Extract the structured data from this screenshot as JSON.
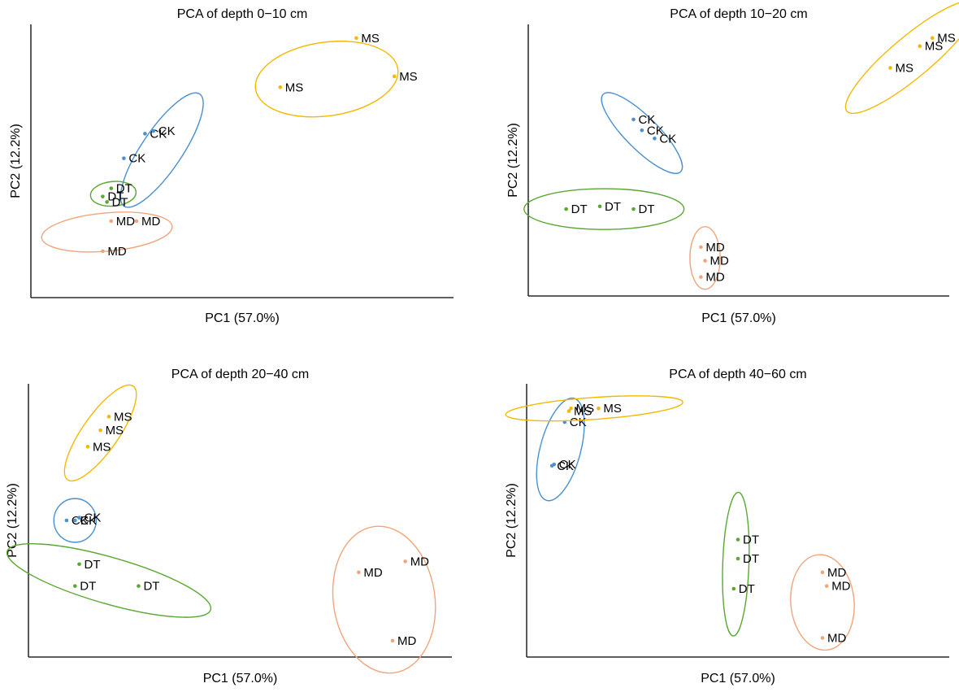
{
  "colors": {
    "CK": "#4a90d0",
    "DT": "#5aa832",
    "MD": "#f2a57a",
    "MS": "#f5b800",
    "axis": "#000000"
  },
  "chart_data": [
    {
      "type": "scatter",
      "title": "PCA of depth 0−10 cm",
      "xlabel": "PC1 (57.0%)",
      "ylabel": "PC2 (12.2%)",
      "xlim": [
        0,
        100
      ],
      "ylim": [
        0,
        100
      ],
      "series": [
        {
          "group": "CK",
          "points": [
            {
              "x": 27,
              "y": 60,
              "label": "CK"
            },
            {
              "x": 29,
              "y": 61,
              "label": "CK"
            },
            {
              "x": 22,
              "y": 51,
              "label": "CK"
            }
          ],
          "ellipse": {
            "cx": 31,
            "cy": 54,
            "rx": 16,
            "ry": 7.4,
            "angle": -56
          }
        },
        {
          "group": "DT",
          "points": [
            {
              "x": 19,
              "y": 40,
              "label": "DT"
            },
            {
              "x": 17,
              "y": 37,
              "label": "DT"
            },
            {
              "x": 18,
              "y": 35,
              "label": "DT"
            }
          ],
          "ellipse": {
            "cx": 19.5,
            "cy": 38,
            "rx": 5.4,
            "ry": 4.5,
            "angle": -5
          }
        },
        {
          "group": "MD",
          "points": [
            {
              "x": 19,
              "y": 28,
              "label": "MD"
            },
            {
              "x": 25,
              "y": 28,
              "label": "MD"
            },
            {
              "x": 17,
              "y": 17,
              "label": "MD"
            }
          ],
          "ellipse": {
            "cx": 18,
            "cy": 24,
            "rx": 15.5,
            "ry": 7,
            "angle": -5
          }
        },
        {
          "group": "MS",
          "points": [
            {
              "x": 77,
              "y": 95,
              "label": "MS"
            },
            {
              "x": 86,
              "y": 81,
              "label": "MS"
            },
            {
              "x": 59,
              "y": 77,
              "label": "MS"
            }
          ],
          "ellipse": {
            "cx": 70,
            "cy": 80,
            "rx": 17,
            "ry": 13.5,
            "angle": -8
          }
        }
      ]
    },
    {
      "type": "scatter",
      "title": "PCA of depth 10−20 cm",
      "xlabel": "PC1 (57.0%)",
      "ylabel": "PC2 (12.2%)",
      "xlim": [
        0,
        100
      ],
      "ylim": [
        0,
        100
      ],
      "series": [
        {
          "group": "CK",
          "points": [
            {
              "x": 25,
              "y": 65,
              "label": "CK"
            },
            {
              "x": 27,
              "y": 61,
              "label": "CK"
            },
            {
              "x": 30,
              "y": 58,
              "label": "CK"
            }
          ],
          "ellipse": {
            "cx": 27,
            "cy": 60,
            "rx": 13,
            "ry": 6,
            "angle": 45
          }
        },
        {
          "group": "DT",
          "points": [
            {
              "x": 9,
              "y": 32,
              "label": "DT"
            },
            {
              "x": 17,
              "y": 33,
              "label": "DT"
            },
            {
              "x": 25,
              "y": 32,
              "label": "DT"
            }
          ],
          "ellipse": {
            "cx": 18,
            "cy": 32,
            "rx": 19,
            "ry": 7.5,
            "angle": 0
          }
        },
        {
          "group": "MD",
          "points": [
            {
              "x": 41,
              "y": 18,
              "label": "MD"
            },
            {
              "x": 42,
              "y": 13,
              "label": "MD"
            },
            {
              "x": 41,
              "y": 7,
              "label": "MD"
            }
          ],
          "ellipse": {
            "cx": 42,
            "cy": 14,
            "rx": 3.6,
            "ry": 11.5,
            "angle": 0
          }
        },
        {
          "group": "MS",
          "points": [
            {
              "x": 93,
              "y": 92,
              "label": "MS"
            },
            {
              "x": 96,
              "y": 95,
              "label": "MS"
            },
            {
              "x": 86,
              "y": 84,
              "label": "MS"
            }
          ],
          "ellipse": {
            "cx": 91,
            "cy": 88,
            "rx": 20,
            "ry": 7.5,
            "angle": -40
          }
        }
      ]
    },
    {
      "type": "scatter",
      "title": "PCA of depth 20−40 cm",
      "xlabel": "PC1 (57.0%)",
      "ylabel": "PC2 (12.2%)",
      "xlim": [
        0,
        100
      ],
      "ylim": [
        0,
        100
      ],
      "series": [
        {
          "group": "CK",
          "points": [
            {
              "x": 9,
              "y": 50,
              "label": "CK"
            },
            {
              "x": 11,
              "y": 50,
              "label": "CK"
            },
            {
              "x": 12,
              "y": 51,
              "label": "CK"
            }
          ],
          "ellipse": {
            "cx": 11,
            "cy": 50,
            "rx": 5,
            "ry": 8,
            "angle": 0
          }
        },
        {
          "group": "DT",
          "points": [
            {
              "x": 12,
              "y": 34,
              "label": "DT"
            },
            {
              "x": 11,
              "y": 26,
              "label": "DT"
            },
            {
              "x": 26,
              "y": 26,
              "label": "DT"
            }
          ],
          "ellipse": {
            "cx": 19,
            "cy": 28,
            "rx": 25,
            "ry": 8.5,
            "angle": 16
          }
        },
        {
          "group": "MD",
          "points": [
            {
              "x": 89,
              "y": 35,
              "label": "MD"
            },
            {
              "x": 78,
              "y": 31,
              "label": "MD"
            },
            {
              "x": 86,
              "y": 6,
              "label": "MD"
            }
          ],
          "ellipse": {
            "cx": 84,
            "cy": 21,
            "rx": 12,
            "ry": 27,
            "angle": -8
          }
        },
        {
          "group": "MS",
          "points": [
            {
              "x": 19,
              "y": 88,
              "label": "MS"
            },
            {
              "x": 17,
              "y": 83,
              "label": "MS"
            },
            {
              "x": 14,
              "y": 77,
              "label": "MS"
            }
          ],
          "ellipse": {
            "cx": 17,
            "cy": 82,
            "rx": 13.5,
            "ry": 6.6,
            "angle": -55
          }
        }
      ]
    },
    {
      "type": "scatter",
      "title": "PCA of depth 40−60 cm",
      "xlabel": "PC1 (57.0%)",
      "ylabel": "PC2 (12.2%)",
      "xlim": [
        0,
        100
      ],
      "ylim": [
        0,
        100
      ],
      "series": [
        {
          "group": "CK",
          "points": [
            {
              "x": 9,
              "y": 86,
              "label": "CK"
            },
            {
              "x": 6,
              "y": 70,
              "label": "CK"
            },
            {
              "x": 6.5,
              "y": 70.5,
              "label": "CK"
            }
          ],
          "ellipse": {
            "cx": 8,
            "cy": 76,
            "rx": 12.5,
            "ry": 7.4,
            "angle": -75
          }
        },
        {
          "group": "DT",
          "points": [
            {
              "x": 50,
              "y": 43,
              "label": "DT"
            },
            {
              "x": 50,
              "y": 36,
              "label": "DT"
            },
            {
              "x": 49,
              "y": 25,
              "label": "DT"
            }
          ],
          "ellipse": {
            "cx": 49.5,
            "cy": 34,
            "rx": 17,
            "ry": 4.8,
            "angle": -88
          }
        },
        {
          "group": "MD",
          "points": [
            {
              "x": 70,
              "y": 31,
              "label": "MD"
            },
            {
              "x": 71,
              "y": 26,
              "label": "MD"
            },
            {
              "x": 70,
              "y": 7,
              "label": "MD"
            }
          ],
          "ellipse": {
            "cx": 70,
            "cy": 20,
            "rx": 7.5,
            "ry": 17.5,
            "angle": -5
          }
        },
        {
          "group": "MS",
          "points": [
            {
              "x": 10,
              "y": 90,
              "label": "MS"
            },
            {
              "x": 10.5,
              "y": 91,
              "label": "MS"
            },
            {
              "x": 17,
              "y": 91,
              "label": "MS"
            }
          ],
          "ellipse": {
            "cx": 16,
            "cy": 91,
            "rx": 21,
            "ry": 4,
            "angle": -4
          }
        }
      ]
    }
  ]
}
